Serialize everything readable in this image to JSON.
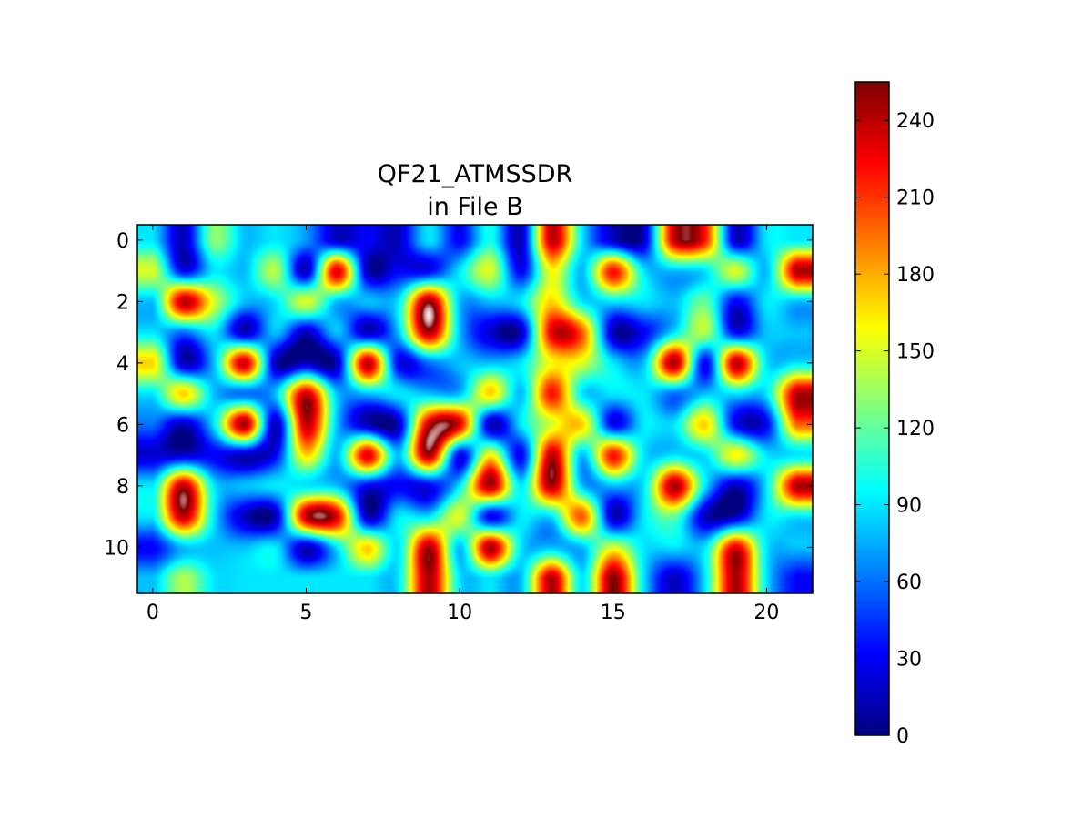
{
  "chart_data": {
    "type": "heatmap",
    "title": [
      "QF21_ATMSSDR",
      "in File B"
    ],
    "colormap": "jet",
    "interpolation": "bicubic",
    "xlim": [
      -0.5,
      21.5
    ],
    "ylim": [
      11.5,
      -0.5
    ],
    "x_ticks": [
      0,
      5,
      10,
      15,
      20
    ],
    "y_ticks": [
      0,
      2,
      4,
      6,
      8,
      10
    ],
    "x_tick_labels": [
      "0",
      "5",
      "10",
      "15",
      "20"
    ],
    "y_tick_labels": [
      "0",
      "2",
      "4",
      "6",
      "8",
      "10"
    ],
    "colorbar": {
      "vmin": 0,
      "vmax": 255,
      "ticks": [
        0,
        30,
        60,
        90,
        120,
        150,
        180,
        210,
        240
      ],
      "tick_labels": [
        "0",
        "30",
        "60",
        "90",
        "120",
        "150",
        "180",
        "210",
        "240"
      ]
    },
    "rows": 12,
    "cols": 22,
    "z": [
      [
        90,
        15,
        130,
        80,
        90,
        70,
        15,
        30,
        15,
        90,
        30,
        100,
        15,
        240,
        90,
        15,
        15,
        240,
        220,
        15,
        90,
        90
      ],
      [
        150,
        30,
        90,
        80,
        140,
        15,
        230,
        15,
        30,
        30,
        90,
        150,
        30,
        160,
        80,
        220,
        90,
        80,
        90,
        150,
        80,
        245
      ],
      [
        80,
        240,
        150,
        80,
        90,
        150,
        80,
        80,
        90,
        250,
        80,
        80,
        90,
        170,
        90,
        90,
        90,
        80,
        120,
        30,
        90,
        80
      ],
      [
        90,
        60,
        90,
        15,
        80,
        15,
        80,
        15,
        80,
        245,
        80,
        20,
        15,
        230,
        200,
        15,
        30,
        90,
        140,
        30,
        80,
        80
      ],
      [
        170,
        15,
        80,
        235,
        15,
        15,
        15,
        240,
        30,
        60,
        80,
        80,
        90,
        160,
        150,
        90,
        80,
        245,
        30,
        240,
        90,
        90
      ],
      [
        90,
        170,
        80,
        60,
        80,
        235,
        80,
        80,
        90,
        80,
        80,
        170,
        80,
        220,
        90,
        90,
        90,
        60,
        80,
        90,
        90,
        245
      ],
      [
        60,
        15,
        90,
        245,
        15,
        240,
        80,
        15,
        15,
        240,
        230,
        15,
        90,
        150,
        170,
        30,
        90,
        90,
        170,
        30,
        30,
        200
      ],
      [
        20,
        20,
        30,
        15,
        30,
        170,
        80,
        230,
        80,
        245,
        30,
        160,
        30,
        240,
        80,
        220,
        90,
        90,
        90,
        160,
        90,
        90
      ],
      [
        90,
        240,
        90,
        80,
        90,
        90,
        80,
        30,
        30,
        30,
        90,
        245,
        90,
        245,
        80,
        80,
        90,
        245,
        90,
        15,
        90,
        245
      ],
      [
        90,
        240,
        90,
        15,
        15,
        240,
        230,
        15,
        90,
        90,
        150,
        30,
        90,
        90,
        200,
        15,
        90,
        120,
        15,
        15,
        90,
        90
      ],
      [
        30,
        80,
        80,
        80,
        90,
        15,
        90,
        170,
        90,
        245,
        80,
        245,
        90,
        80,
        80,
        150,
        90,
        90,
        90,
        230,
        90,
        80
      ],
      [
        80,
        140,
        90,
        90,
        90,
        90,
        90,
        90,
        90,
        245,
        90,
        90,
        80,
        245,
        90,
        255,
        90,
        15,
        90,
        245,
        90,
        30
      ]
    ]
  }
}
